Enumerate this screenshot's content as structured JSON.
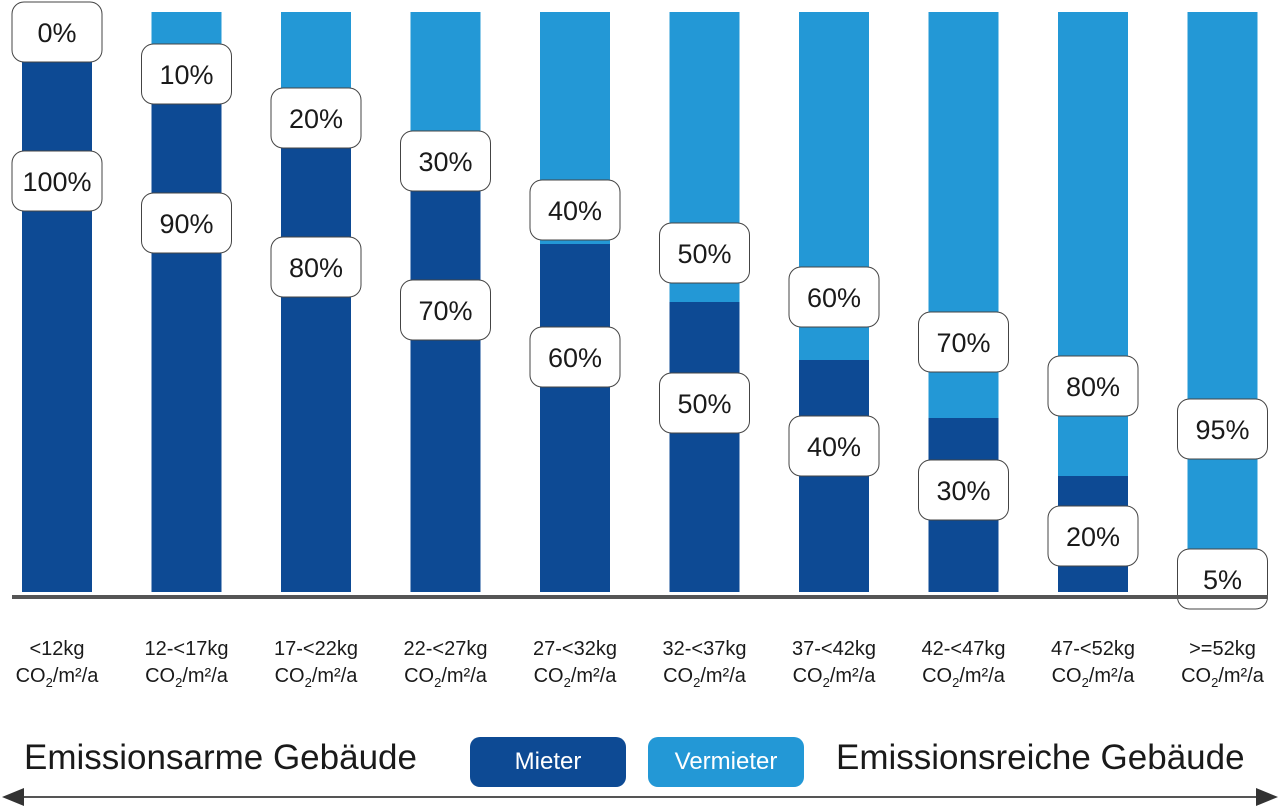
{
  "colors": {
    "mieter": "#0d4a94",
    "vermieter": "#2398d6",
    "axis": "#555555"
  },
  "legend": {
    "mieter": "Mieter",
    "vermieter": "Vermieter"
  },
  "captions": {
    "left": "Emissionsarme Gebäude",
    "right": "Emissionsreiche Gebäude"
  },
  "chart_data": {
    "type": "bar",
    "stacked": true,
    "percent": true,
    "categories": [
      {
        "line1": "<12kg",
        "unit_main": "CO",
        "unit_sub": "2",
        "unit_rest": "/m²/a"
      },
      {
        "line1": "12-<17kg",
        "unit_main": "CO",
        "unit_sub": "2",
        "unit_rest": "/m²/a"
      },
      {
        "line1": "17-<22kg",
        "unit_main": "CO",
        "unit_sub": "2",
        "unit_rest": "/m²/a"
      },
      {
        "line1": "22-<27kg",
        "unit_main": "CO",
        "unit_sub": "2",
        "unit_rest": "/m²/a"
      },
      {
        "line1": "27-<32kg",
        "unit_main": "CO",
        "unit_sub": "2",
        "unit_rest": "/m²/a"
      },
      {
        "line1": "32-<37kg",
        "unit_main": "CO",
        "unit_sub": "2",
        "unit_rest": "/m²/a"
      },
      {
        "line1": "37-<42kg",
        "unit_main": "CO",
        "unit_sub": "2",
        "unit_rest": "/m²/a"
      },
      {
        "line1": "42-<47kg",
        "unit_main": "CO",
        "unit_sub": "2",
        "unit_rest": "/m²/a"
      },
      {
        "line1": "47-<52kg",
        "unit_main": "CO",
        "unit_sub": "2",
        "unit_rest": "/m²/a"
      },
      {
        "line1": ">=52kg",
        "unit_main": "CO",
        "unit_sub": "2",
        "unit_rest": "/m²/a"
      }
    ],
    "series": [
      {
        "name": "Mieter",
        "values": [
          100,
          90,
          80,
          70,
          60,
          50,
          40,
          30,
          20,
          5
        ],
        "labels": [
          "100%",
          "90%",
          "80%",
          "70%",
          "60%",
          "50%",
          "40%",
          "30%",
          "20%",
          "5%"
        ]
      },
      {
        "name": "Vermieter",
        "values": [
          0,
          10,
          20,
          30,
          40,
          50,
          60,
          70,
          80,
          95
        ],
        "labels": [
          "0%",
          "10%",
          "20%",
          "30%",
          "40%",
          "50%",
          "60%",
          "70%",
          "80%",
          "95%"
        ]
      }
    ],
    "ylim": [
      0,
      100
    ],
    "grid": false,
    "legend_position": "bottom-center"
  }
}
